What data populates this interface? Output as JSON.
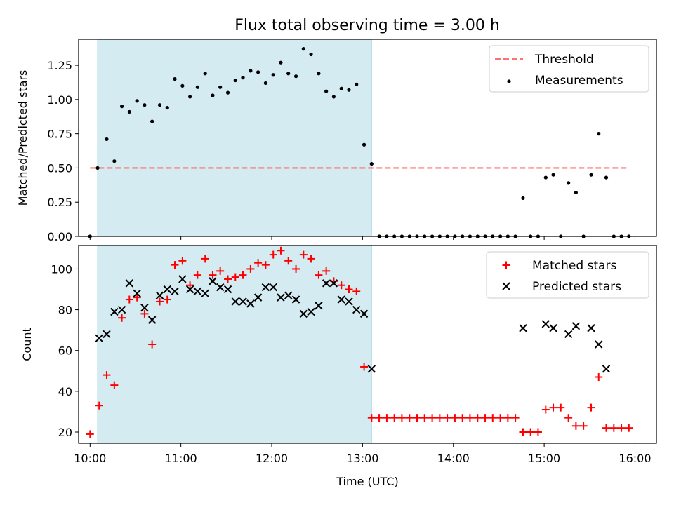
{
  "title": "Flux total observing time = 3.00 h",
  "colors": {
    "shade": "#add8e6",
    "threshold": "#ff7070",
    "matched": "#ff0000",
    "predicted": "#000000",
    "measurement": "#000000"
  },
  "chart_data": [
    {
      "type": "scatter",
      "ylabel": "Matched/Predicted stars",
      "xlim": [
        9.874,
        16.236
      ],
      "ylim": [
        0,
        1.44
      ],
      "yticks": [
        0,
        0.25,
        0.5,
        0.75,
        1.0,
        1.25
      ],
      "ytick_labels": [
        "0.00",
        "0.25",
        "0.50",
        "0.75",
        "1.00",
        "1.25"
      ],
      "grid": false,
      "shaded_interval": [
        10.083,
        13.1
      ],
      "legend": {
        "position": "top-right",
        "entries": [
          "Threshold",
          "Measurements"
        ]
      },
      "threshold": {
        "name": "Threshold",
        "value": 0.5,
        "x_range": [
          10.0,
          15.92
        ],
        "style": "dashed"
      },
      "series": [
        {
          "name": "Measurements",
          "marker": "dot",
          "points": [
            [
              10.0,
              0.0
            ],
            [
              10.083,
              0.5
            ],
            [
              10.183,
              0.71
            ],
            [
              10.267,
              0.55
            ],
            [
              10.35,
              0.95
            ],
            [
              10.433,
              0.91
            ],
            [
              10.517,
              0.99
            ],
            [
              10.6,
              0.96
            ],
            [
              10.683,
              0.84
            ],
            [
              10.767,
              0.96
            ],
            [
              10.85,
              0.94
            ],
            [
              10.933,
              1.15
            ],
            [
              11.017,
              1.1
            ],
            [
              11.1,
              1.02
            ],
            [
              11.183,
              1.09
            ],
            [
              11.267,
              1.19
            ],
            [
              11.35,
              1.03
            ],
            [
              11.433,
              1.09
            ],
            [
              11.517,
              1.05
            ],
            [
              11.6,
              1.14
            ],
            [
              11.683,
              1.16
            ],
            [
              11.767,
              1.21
            ],
            [
              11.85,
              1.2
            ],
            [
              11.933,
              1.12
            ],
            [
              12.017,
              1.18
            ],
            [
              12.1,
              1.27
            ],
            [
              12.183,
              1.19
            ],
            [
              12.267,
              1.17
            ],
            [
              12.35,
              1.37
            ],
            [
              12.433,
              1.33
            ],
            [
              12.517,
              1.19
            ],
            [
              12.6,
              1.06
            ],
            [
              12.683,
              1.02
            ],
            [
              12.767,
              1.08
            ],
            [
              12.85,
              1.07
            ],
            [
              12.933,
              1.11
            ],
            [
              13.017,
              0.67
            ],
            [
              13.1,
              0.53
            ],
            [
              13.183,
              0.0
            ],
            [
              13.267,
              0.0
            ],
            [
              13.35,
              0.0
            ],
            [
              13.433,
              0.0
            ],
            [
              13.517,
              0.0
            ],
            [
              13.6,
              0.0
            ],
            [
              13.683,
              0.0
            ],
            [
              13.767,
              0.0
            ],
            [
              13.85,
              0.0
            ],
            [
              13.933,
              0.0
            ],
            [
              14.017,
              0.0
            ],
            [
              14.1,
              0.0
            ],
            [
              14.183,
              0.0
            ],
            [
              14.267,
              0.0
            ],
            [
              14.35,
              0.0
            ],
            [
              14.433,
              0.0
            ],
            [
              14.517,
              0.0
            ],
            [
              14.6,
              0.0
            ],
            [
              14.683,
              0.0
            ],
            [
              14.767,
              0.28
            ],
            [
              14.85,
              0.0
            ],
            [
              14.933,
              0.0
            ],
            [
              15.017,
              0.43
            ],
            [
              15.1,
              0.45
            ],
            [
              15.183,
              0.0
            ],
            [
              15.267,
              0.39
            ],
            [
              15.35,
              0.32
            ],
            [
              15.433,
              0.0
            ],
            [
              15.517,
              0.45
            ],
            [
              15.6,
              0.75
            ],
            [
              15.683,
              0.43
            ],
            [
              15.767,
              0.0
            ],
            [
              15.85,
              0.0
            ],
            [
              15.933,
              0.0
            ]
          ]
        }
      ]
    },
    {
      "type": "scatter",
      "xlabel": "Time (UTC)",
      "ylabel": "Count",
      "xlim": [
        9.874,
        16.236
      ],
      "ylim": [
        14.5,
        111.5
      ],
      "xticks": [
        10,
        11,
        12,
        13,
        14,
        15,
        16
      ],
      "xtick_labels": [
        "10:00",
        "11:00",
        "12:00",
        "13:00",
        "14:00",
        "15:00",
        "16:00"
      ],
      "yticks": [
        20,
        40,
        60,
        80,
        100
      ],
      "ytick_labels": [
        "20",
        "40",
        "60",
        "80",
        "100"
      ],
      "grid": false,
      "shaded_interval": [
        10.083,
        13.1
      ],
      "legend": {
        "position": "top-right",
        "entries": [
          "Matched stars",
          "Predicted stars"
        ]
      },
      "series": [
        {
          "name": "Matched stars",
          "marker": "plus",
          "points": [
            [
              10.0,
              19
            ],
            [
              10.1,
              33
            ],
            [
              10.183,
              48
            ],
            [
              10.267,
              43
            ],
            [
              10.35,
              76
            ],
            [
              10.433,
              85
            ],
            [
              10.517,
              86
            ],
            [
              10.6,
              78
            ],
            [
              10.683,
              63
            ],
            [
              10.767,
              84
            ],
            [
              10.85,
              85
            ],
            [
              10.933,
              102
            ],
            [
              11.017,
              104
            ],
            [
              11.1,
              92
            ],
            [
              11.183,
              97
            ],
            [
              11.267,
              105
            ],
            [
              11.35,
              97
            ],
            [
              11.433,
              99
            ],
            [
              11.517,
              95
            ],
            [
              11.6,
              96
            ],
            [
              11.683,
              97
            ],
            [
              11.767,
              100
            ],
            [
              11.85,
              103
            ],
            [
              11.933,
              102
            ],
            [
              12.017,
              107
            ],
            [
              12.1,
              109
            ],
            [
              12.183,
              104
            ],
            [
              12.267,
              100
            ],
            [
              12.35,
              107
            ],
            [
              12.433,
              105
            ],
            [
              12.517,
              97
            ],
            [
              12.6,
              99
            ],
            [
              12.683,
              94
            ],
            [
              12.767,
              92
            ],
            [
              12.85,
              90
            ],
            [
              12.933,
              89
            ],
            [
              13.017,
              52
            ],
            [
              13.1,
              27
            ],
            [
              13.183,
              27
            ],
            [
              13.267,
              27
            ],
            [
              13.35,
              27
            ],
            [
              13.433,
              27
            ],
            [
              13.517,
              27
            ],
            [
              13.6,
              27
            ],
            [
              13.683,
              27
            ],
            [
              13.767,
              27
            ],
            [
              13.85,
              27
            ],
            [
              13.933,
              27
            ],
            [
              14.017,
              27
            ],
            [
              14.1,
              27
            ],
            [
              14.183,
              27
            ],
            [
              14.267,
              27
            ],
            [
              14.35,
              27
            ],
            [
              14.433,
              27
            ],
            [
              14.517,
              27
            ],
            [
              14.6,
              27
            ],
            [
              14.683,
              27
            ],
            [
              14.767,
              20
            ],
            [
              14.85,
              20
            ],
            [
              14.933,
              20
            ],
            [
              15.017,
              31
            ],
            [
              15.1,
              32
            ],
            [
              15.183,
              32
            ],
            [
              15.267,
              27
            ],
            [
              15.35,
              23
            ],
            [
              15.433,
              23
            ],
            [
              15.517,
              32
            ],
            [
              15.6,
              47
            ],
            [
              15.683,
              22
            ],
            [
              15.767,
              22
            ],
            [
              15.85,
              22
            ],
            [
              15.933,
              22
            ]
          ]
        },
        {
          "name": "Predicted stars",
          "marker": "x",
          "points": [
            [
              10.1,
              66
            ],
            [
              10.183,
              68
            ],
            [
              10.267,
              79
            ],
            [
              10.35,
              80
            ],
            [
              10.433,
              93
            ],
            [
              10.517,
              88
            ],
            [
              10.6,
              81
            ],
            [
              10.683,
              75
            ],
            [
              10.767,
              87
            ],
            [
              10.85,
              90
            ],
            [
              10.933,
              89
            ],
            [
              11.017,
              95
            ],
            [
              11.1,
              90
            ],
            [
              11.183,
              89
            ],
            [
              11.267,
              88
            ],
            [
              11.35,
              94
            ],
            [
              11.433,
              91
            ],
            [
              11.517,
              90
            ],
            [
              11.6,
              84
            ],
            [
              11.683,
              84
            ],
            [
              11.767,
              83
            ],
            [
              11.85,
              86
            ],
            [
              11.933,
              91
            ],
            [
              12.017,
              91
            ],
            [
              12.1,
              86
            ],
            [
              12.183,
              87
            ],
            [
              12.267,
              85
            ],
            [
              12.35,
              78
            ],
            [
              12.433,
              79
            ],
            [
              12.517,
              82
            ],
            [
              12.6,
              93
            ],
            [
              12.683,
              93
            ],
            [
              12.767,
              85
            ],
            [
              12.85,
              84
            ],
            [
              12.933,
              80
            ],
            [
              13.017,
              78
            ],
            [
              13.1,
              51
            ],
            [
              14.767,
              71
            ],
            [
              15.017,
              73
            ],
            [
              15.1,
              71
            ],
            [
              15.267,
              68
            ],
            [
              15.35,
              72
            ],
            [
              15.517,
              71
            ],
            [
              15.6,
              63
            ],
            [
              15.683,
              51
            ]
          ]
        }
      ]
    }
  ]
}
